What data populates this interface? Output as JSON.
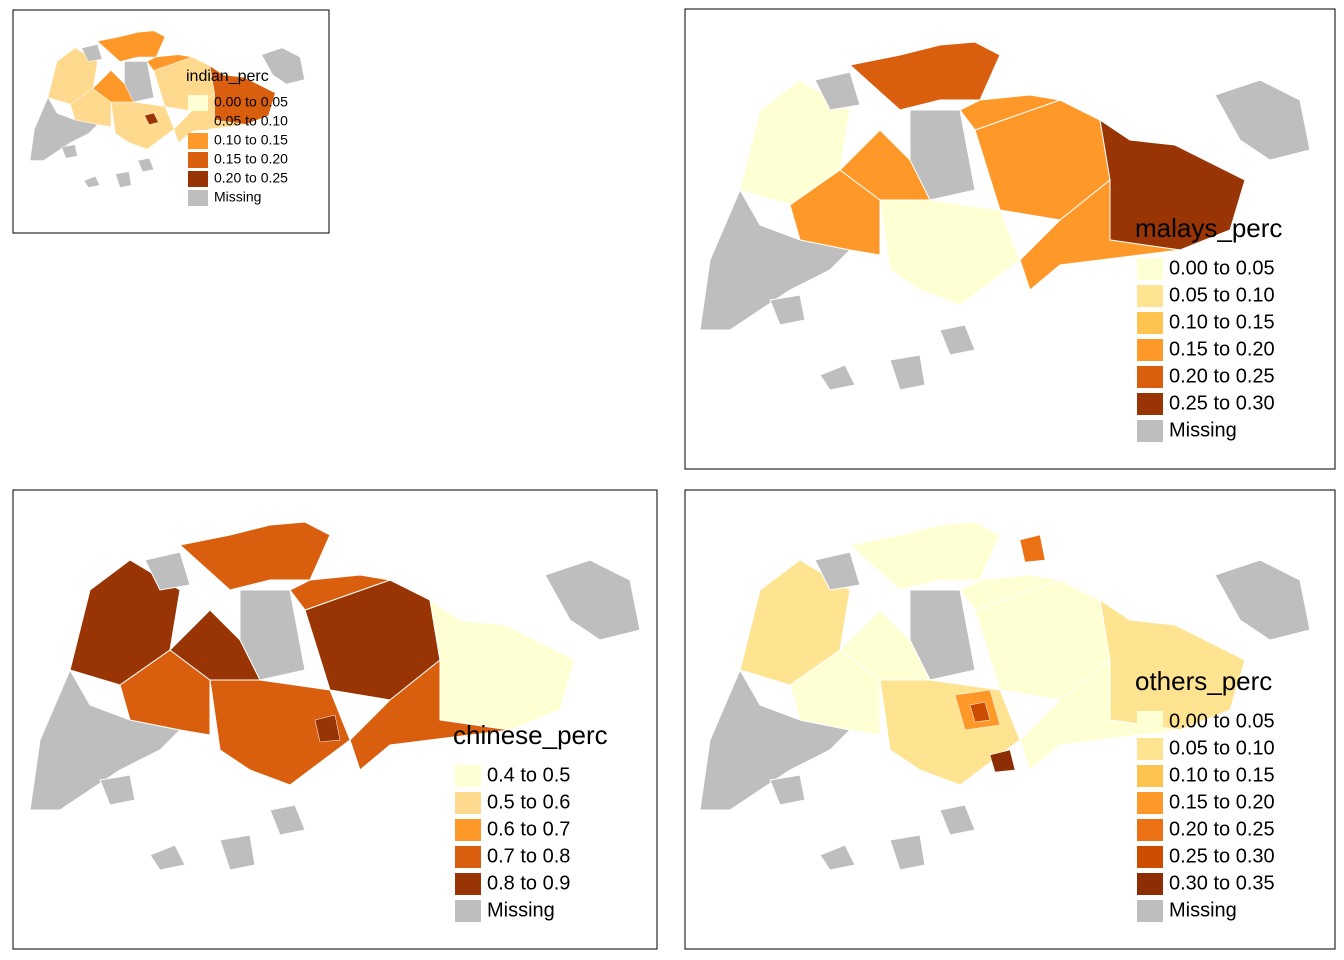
{
  "panels": [
    {
      "legend_title": "indian_perc",
      "entries": [
        {
          "label": "0.00 to 0.05",
          "color": "#ffffd4"
        },
        {
          "label": "0.05 to 0.10",
          "color": "#fed98e"
        },
        {
          "label": "0.10 to 0.15",
          "color": "#fe9929"
        },
        {
          "label": "0.15 to 0.20",
          "color": "#d95f0e"
        },
        {
          "label": "0.20 to 0.25",
          "color": "#993404"
        },
        {
          "label": "Missing",
          "color": "#bebebe"
        }
      ]
    },
    {
      "legend_title": "malays_perc",
      "entries": [
        {
          "label": "0.00 to 0.05",
          "color": "#ffffd4"
        },
        {
          "label": "0.05 to 0.10",
          "color": "#fee391"
        },
        {
          "label": "0.10 to 0.15",
          "color": "#fec44f"
        },
        {
          "label": "0.15 to 0.20",
          "color": "#fe9929"
        },
        {
          "label": "0.20 to 0.25",
          "color": "#d95f0e"
        },
        {
          "label": "0.25 to 0.30",
          "color": "#993404"
        },
        {
          "label": "Missing",
          "color": "#bebebe"
        }
      ]
    },
    {
      "legend_title": "chinese_perc",
      "entries": [
        {
          "label": "0.4 to 0.5",
          "color": "#ffffd4"
        },
        {
          "label": "0.5 to 0.6",
          "color": "#fed98e"
        },
        {
          "label": "0.6 to 0.7",
          "color": "#fe9929"
        },
        {
          "label": "0.7 to 0.8",
          "color": "#d95f0e"
        },
        {
          "label": "0.8 to 0.9",
          "color": "#993404"
        },
        {
          "label": "Missing",
          "color": "#bebebe"
        }
      ]
    },
    {
      "legend_title": "others_perc",
      "entries": [
        {
          "label": "0.00 to 0.05",
          "color": "#ffffd4"
        },
        {
          "label": "0.05 to 0.10",
          "color": "#fee391"
        },
        {
          "label": "0.10 to 0.15",
          "color": "#fec44f"
        },
        {
          "label": "0.15 to 0.20",
          "color": "#fe9929"
        },
        {
          "label": "0.20 to 0.25",
          "color": "#ec7014"
        },
        {
          "label": "0.25 to 0.30",
          "color": "#cc4c02"
        },
        {
          "label": "0.30 to 0.35",
          "color": "#8c2d04"
        },
        {
          "label": "Missing",
          "color": "#bebebe"
        }
      ]
    }
  ]
}
